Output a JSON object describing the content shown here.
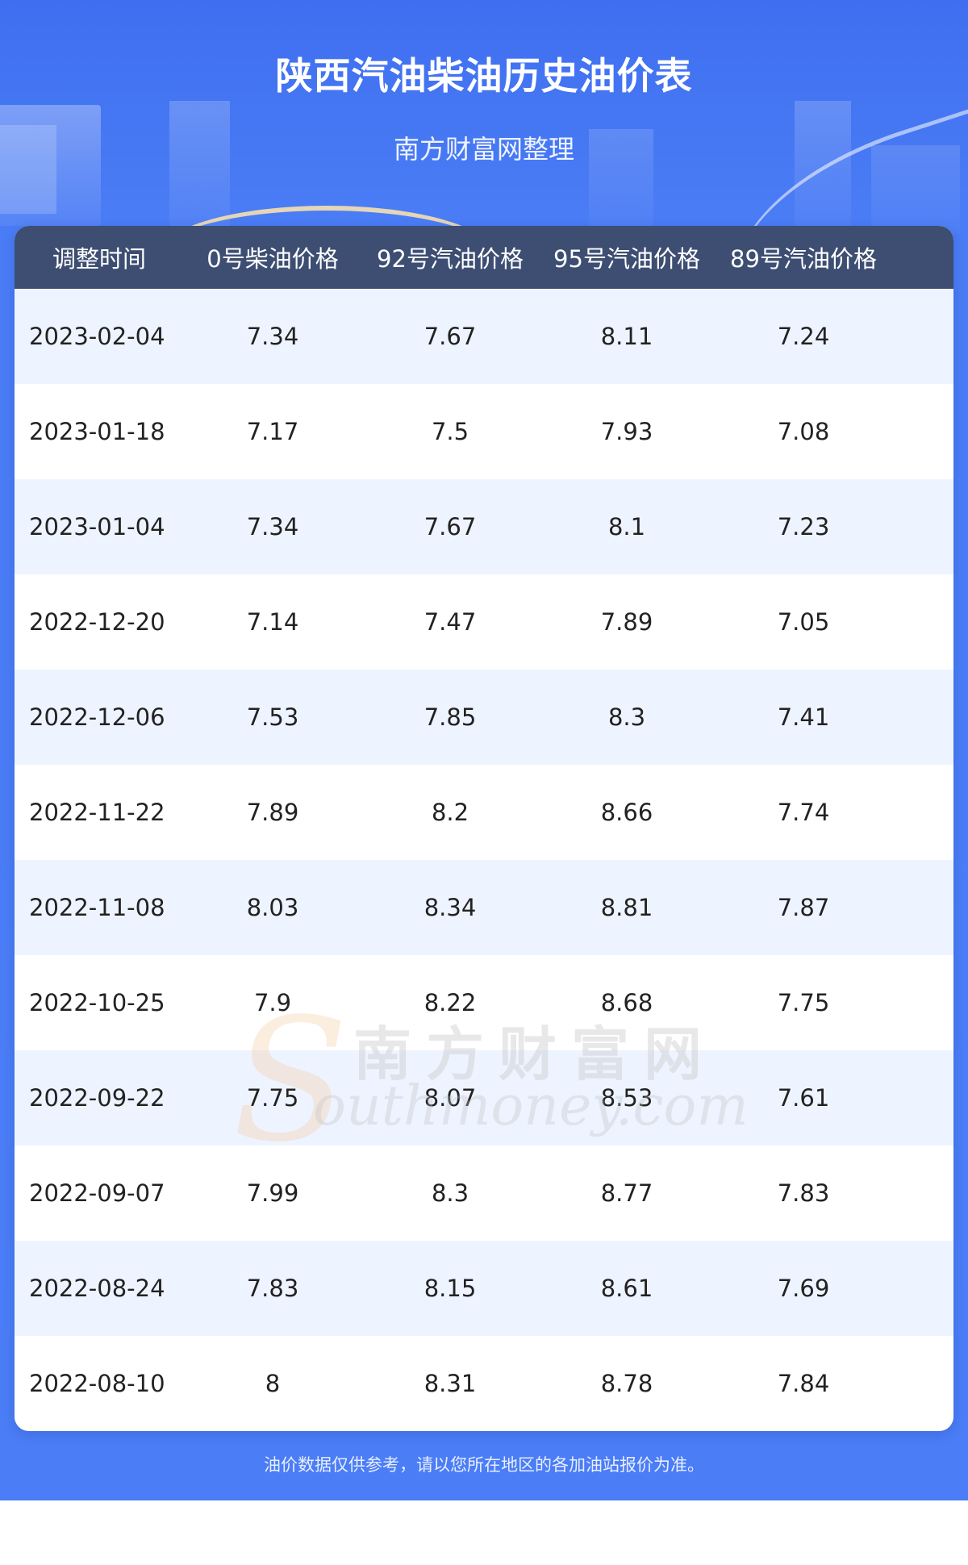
{
  "header": {
    "title": "陕西汽油柴油历史油价表",
    "subtitle": "南方财富网整理"
  },
  "table": {
    "columns": [
      "调整时间",
      "0号柴油价格",
      "92号汽油价格",
      "95号汽油价格",
      "89号汽油价格"
    ],
    "rows": [
      [
        "2023-02-04",
        "7.34",
        "7.67",
        "8.11",
        "7.24"
      ],
      [
        "2023-01-18",
        "7.17",
        "7.5",
        "7.93",
        "7.08"
      ],
      [
        "2023-01-04",
        "7.34",
        "7.67",
        "8.1",
        "7.23"
      ],
      [
        "2022-12-20",
        "7.14",
        "7.47",
        "7.89",
        "7.05"
      ],
      [
        "2022-12-06",
        "7.53",
        "7.85",
        "8.3",
        "7.41"
      ],
      [
        "2022-11-22",
        "7.89",
        "8.2",
        "8.66",
        "7.74"
      ],
      [
        "2022-11-08",
        "8.03",
        "8.34",
        "8.81",
        "7.87"
      ],
      [
        "2022-10-25",
        "7.9",
        "8.22",
        "8.68",
        "7.75"
      ],
      [
        "2022-09-22",
        "7.75",
        "8.07",
        "8.53",
        "7.61"
      ],
      [
        "2022-09-07",
        "7.99",
        "8.3",
        "8.77",
        "7.83"
      ],
      [
        "2022-08-24",
        "7.83",
        "8.15",
        "8.61",
        "7.69"
      ],
      [
        "2022-08-10",
        "8",
        "8.31",
        "8.78",
        "7.84"
      ]
    ]
  },
  "watermark": {
    "letter": "S",
    "cn": "南方财富网",
    "en": "outhmoney.com"
  },
  "footer": {
    "note": "油价数据仅供参考，请以您所在地区的各加油站报价为准。"
  },
  "colors": {
    "background": "#4a7df6",
    "header_row": "#3d4e72",
    "stripe": "#eef4ff"
  }
}
